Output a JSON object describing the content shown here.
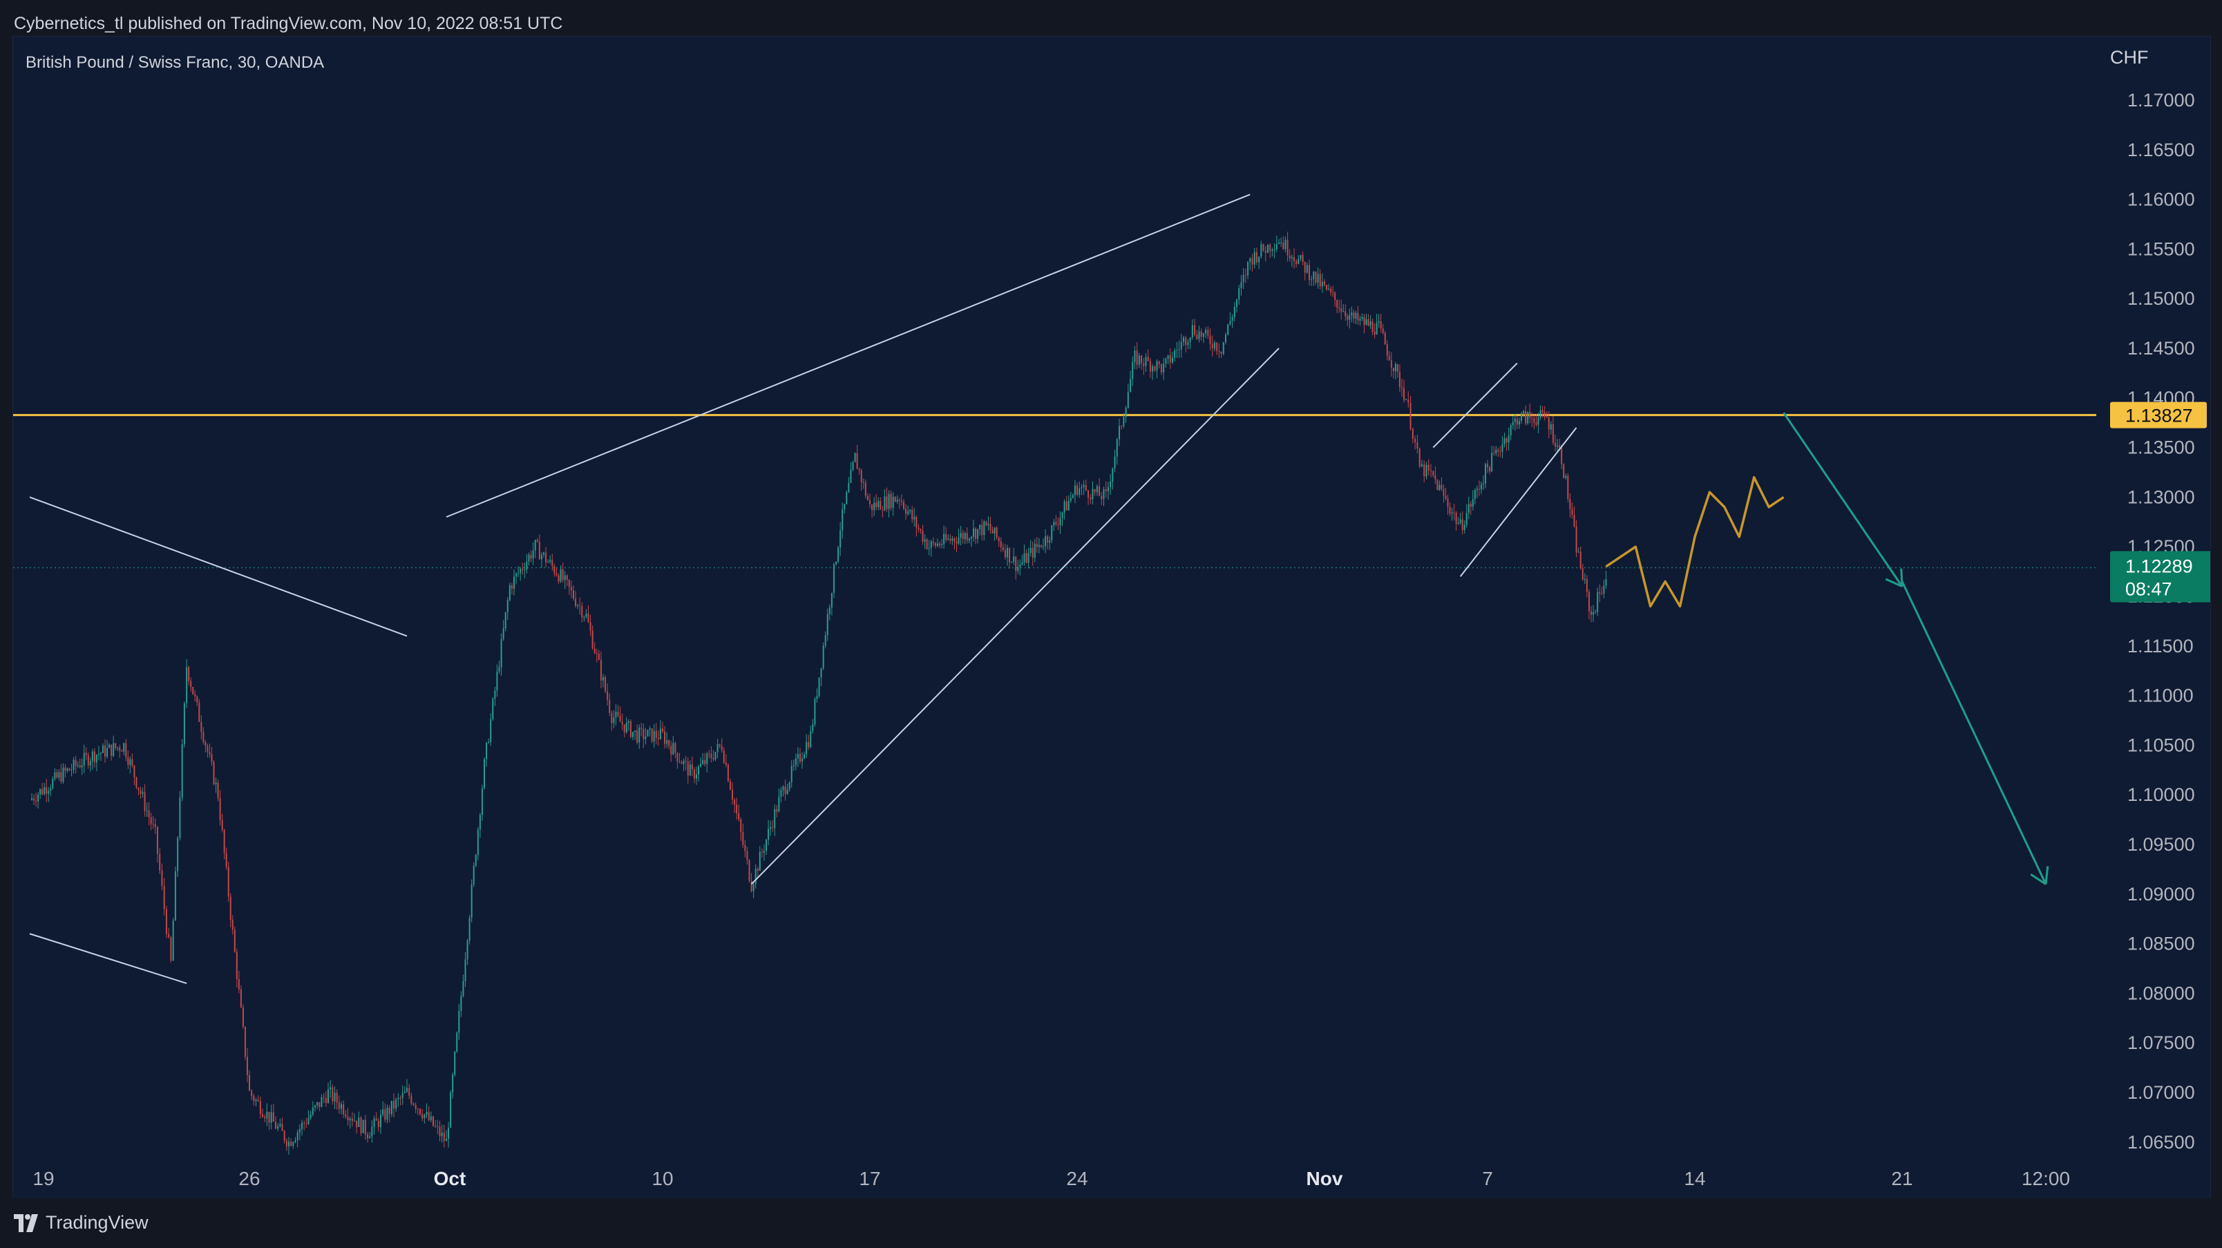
{
  "publish_line": "Cybernetics_tl published on TradingView.com, Nov 10, 2022 08:51 UTC",
  "footer_brand": "TradingView",
  "icons": {
    "logo": "tradingview-logo-icon"
  },
  "colors": {
    "background": "#131722",
    "chart_bg": "#0f1b33",
    "candle_up": "#2a9d8f",
    "candle_down": "#c4474a",
    "horizontal_line": "#f5c242",
    "projection": "#c8962c",
    "arrow": "#1f9e8a",
    "trendline": "#c7d4e6",
    "current_price_bg": "#097c62"
  },
  "chart_data": {
    "type": "candlestick",
    "title": "British Pound / Swiss Franc, 30, OANDA",
    "symbol": "GBPCHF",
    "timeframe": "30",
    "exchange": "OANDA",
    "currency_label": "CHF",
    "x_tick_labels": [
      "19",
      "26",
      "Oct",
      "10",
      "17",
      "24",
      "Nov",
      "7",
      "14",
      "21",
      "12:00"
    ],
    "y_tick_labels": [
      "1.17000",
      "1.16500",
      "1.16000",
      "1.15500",
      "1.15000",
      "1.14500",
      "1.14000",
      "1.13500",
      "1.13000",
      "1.12500",
      "1.12000",
      "1.11500",
      "1.11000",
      "1.10500",
      "1.10000",
      "1.09500",
      "1.09000",
      "1.08500",
      "1.08000",
      "1.07500",
      "1.07000",
      "1.06500"
    ],
    "ylim": [
      1.0635,
      1.1745
    ],
    "horizontal_level": {
      "value": 1.13827,
      "label": "1.13827"
    },
    "current_price": {
      "value": 1.12289,
      "label": "1.12289",
      "countdown": "08:47"
    },
    "price_path": [
      [
        "Sep 19",
        1.0995
      ],
      [
        "Sep 20",
        1.102
      ],
      [
        "Sep 21",
        1.104
      ],
      [
        "Sep 22",
        1.105
      ],
      [
        "Sep 23",
        1.096
      ],
      [
        "Sep 23 late",
        1.083
      ],
      [
        "Sep 24",
        1.113
      ],
      [
        "Sep 25",
        1.1
      ],
      [
        "Sep 26",
        1.07
      ],
      [
        "Sep 27",
        1.065
      ],
      [
        "Sep 28",
        1.07
      ],
      [
        "Sep 29",
        1.066
      ],
      [
        "Sep 30",
        1.07
      ],
      [
        "Oct 1",
        1.065
      ],
      [
        "Oct 2",
        1.084
      ],
      [
        "Oct 3",
        1.103
      ],
      [
        "Oct 4",
        1.121
      ],
      [
        "Oct 5",
        1.125
      ],
      [
        "Oct 6",
        1.122
      ],
      [
        "Oct 7",
        1.118
      ],
      [
        "Oct 8",
        1.108
      ],
      [
        "Oct 9",
        1.106
      ],
      [
        "Oct 10",
        1.106
      ],
      [
        "Oct 11",
        1.102
      ],
      [
        "Oct 12",
        1.105
      ],
      [
        "Oct 13",
        1.091
      ],
      [
        "Oct 14",
        1.1
      ],
      [
        "Oct 15",
        1.106
      ],
      [
        "Oct 16",
        1.127
      ],
      [
        "Oct 16 late",
        1.134
      ],
      [
        "Oct 17",
        1.129
      ],
      [
        "Oct 18",
        1.13
      ],
      [
        "Oct 19",
        1.125
      ],
      [
        "Oct 20",
        1.126
      ],
      [
        "Oct 21",
        1.127
      ],
      [
        "Oct 22",
        1.123
      ],
      [
        "Oct 23",
        1.126
      ],
      [
        "Oct 24",
        1.131
      ],
      [
        "Oct 25",
        1.13
      ],
      [
        "Oct 26",
        1.144
      ],
      [
        "Oct 27",
        1.143
      ],
      [
        "Oct 28",
        1.147
      ],
      [
        "Oct 29",
        1.145
      ],
      [
        "Oct 30",
        1.154
      ],
      [
        "Oct 31",
        1.156
      ],
      [
        "Nov 1",
        1.151
      ],
      [
        "Nov 2",
        1.148
      ],
      [
        "Nov 3",
        1.147
      ],
      [
        "Nov 4",
        1.14
      ],
      [
        "Nov 4 late",
        1.133
      ],
      [
        "Nov 5",
        1.132
      ],
      [
        "Nov 6",
        1.127
      ],
      [
        "Nov 7",
        1.133
      ],
      [
        "Nov 8",
        1.138
      ],
      [
        "Nov 9",
        1.138
      ],
      [
        "Nov 9 late",
        1.134
      ],
      [
        "Nov 10",
        1.125
      ],
      [
        "Nov 10 late",
        1.118
      ],
      [
        "Nov 11",
        1.122
      ]
    ],
    "projection_path": [
      [
        "Nov 11",
        1.123
      ],
      [
        "Nov 12",
        1.125
      ],
      [
        "Nov 12 late",
        1.119
      ],
      [
        "Nov 13",
        1.1215
      ],
      [
        "Nov 13 late",
        1.119
      ],
      [
        "Nov 14",
        1.126
      ],
      [
        "Nov 14 late",
        1.1305
      ],
      [
        "Nov 15",
        1.129
      ],
      [
        "Nov 15 late",
        1.126
      ],
      [
        "Nov 16",
        1.132
      ],
      [
        "Nov 16 late",
        1.129
      ],
      [
        "Nov 17",
        1.13
      ]
    ],
    "trendlines": [
      {
        "from": [
          "Sep 19",
          1.13
        ],
        "to": [
          "Sep 30",
          1.116
        ]
      },
      {
        "from": [
          "Sep 19",
          1.086
        ],
        "to": [
          "Sep 24",
          1.081
        ]
      },
      {
        "from": [
          "Oct 1",
          1.128
        ],
        "to": [
          "Oct 30",
          1.1605
        ]
      },
      {
        "from": [
          "Oct 13",
          1.091
        ],
        "to": [
          "Oct 31",
          1.145
        ]
      },
      {
        "from": [
          "Nov 5",
          1.135
        ],
        "to": [
          "Nov 8",
          1.1435
        ]
      },
      {
        "from": [
          "Nov 6",
          1.122
        ],
        "to": [
          "Nov 10",
          1.137
        ]
      }
    ],
    "arrows": [
      {
        "from": [
          "Nov 17",
          1.1385
        ],
        "to": [
          "Nov 21",
          1.121
        ]
      },
      {
        "from": [
          "Nov 21",
          1.1215
        ],
        "to": [
          "Nov 28",
          1.091
        ]
      }
    ]
  }
}
